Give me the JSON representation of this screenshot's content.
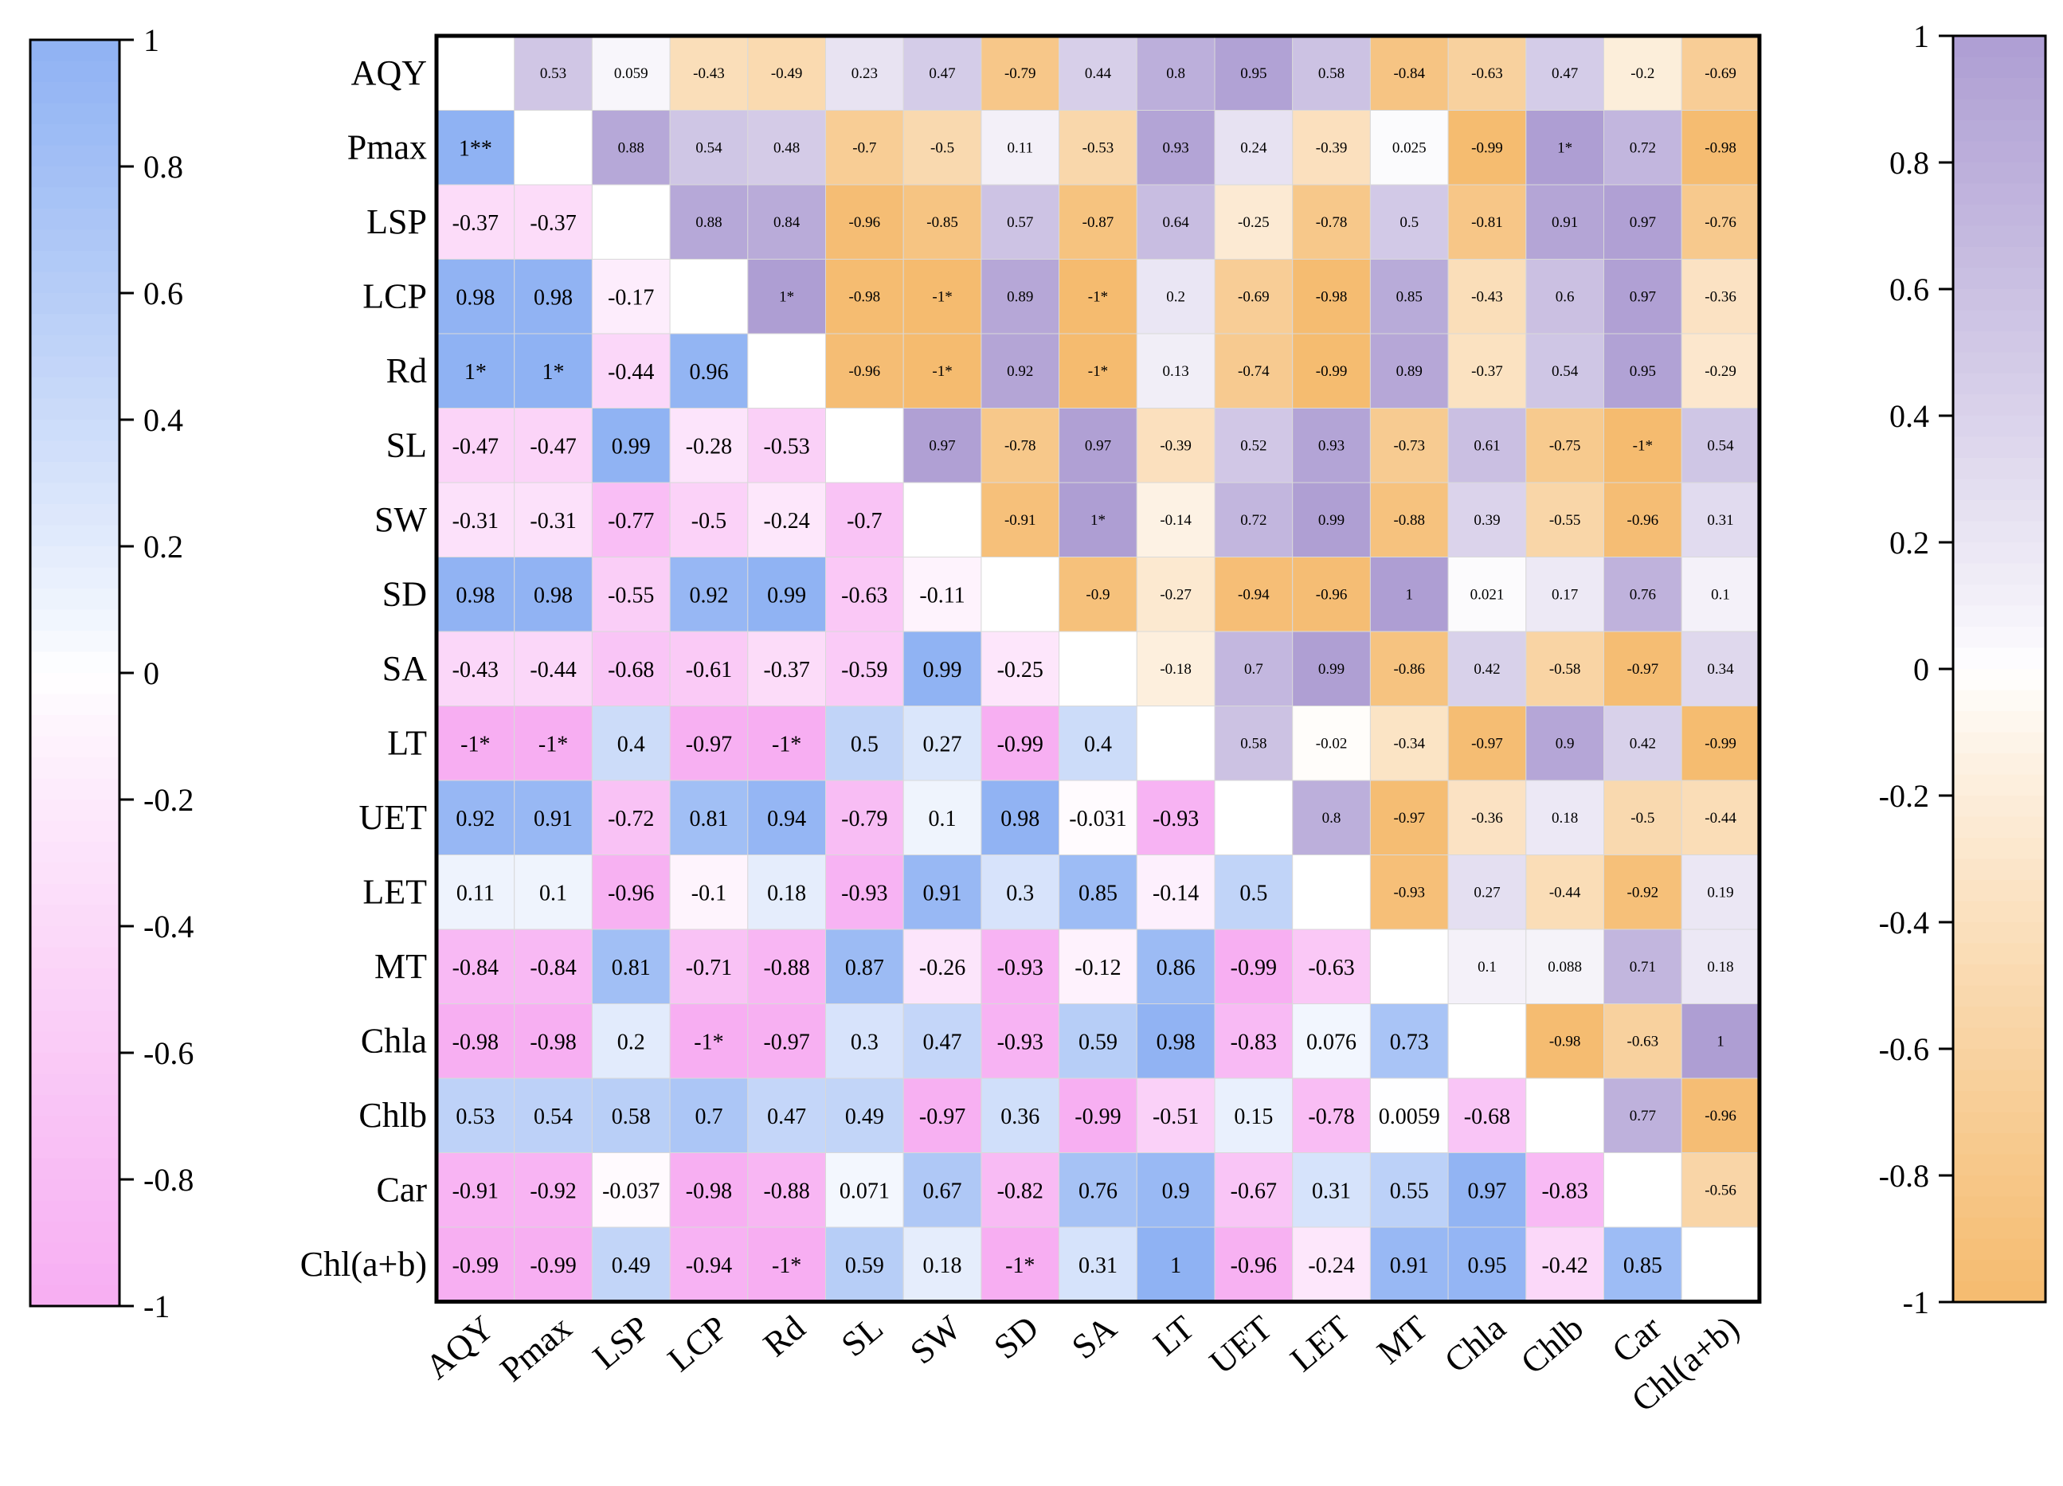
{
  "chart_data": {
    "type": "heatmap",
    "labels": [
      "AQY",
      "Pmax",
      "LSP",
      "LCP",
      "Rd",
      "SL",
      "SW",
      "SD",
      "SA",
      "LT",
      "UET",
      "LET",
      "MT",
      "Chla",
      "Chlb",
      "Car",
      "Chl(a+b)"
    ],
    "matrix": [
      [
        "",
        "0.53",
        "0.059",
        "-0.43",
        "-0.49",
        "0.23",
        "0.47",
        "-0.79",
        "0.44",
        "0.8",
        "0.95",
        "0.58",
        "-0.84",
        "-0.63",
        "0.47",
        "-0.2",
        "-0.69"
      ],
      [
        "1**",
        "",
        "0.88",
        "0.54",
        "0.48",
        "-0.7",
        "-0.5",
        "0.11",
        "-0.53",
        "0.93",
        "0.24",
        "-0.39",
        "0.025",
        "-0.99",
        "1*",
        "0.72",
        "-0.98"
      ],
      [
        "-0.37",
        "-0.37",
        "",
        "0.88",
        "0.84",
        "-0.96",
        "-0.85",
        "0.57",
        "-0.87",
        "0.64",
        "-0.25",
        "-0.78",
        "0.5",
        "-0.81",
        "0.91",
        "0.97",
        "-0.76"
      ],
      [
        "0.98",
        "0.98",
        "-0.17",
        "",
        "1*",
        "-0.98",
        "-1*",
        "0.89",
        "-1*",
        "0.2",
        "-0.69",
        "-0.98",
        "0.85",
        "-0.43",
        "0.6",
        "0.97",
        "-0.36"
      ],
      [
        "1*",
        "1*",
        "-0.44",
        "0.96",
        "",
        "-0.96",
        "-1*",
        "0.92",
        "-1*",
        "0.13",
        "-0.74",
        "-0.99",
        "0.89",
        "-0.37",
        "0.54",
        "0.95",
        "-0.29"
      ],
      [
        "-0.47",
        "-0.47",
        "0.99",
        "-0.28",
        "-0.53",
        "",
        "0.97",
        "-0.78",
        "0.97",
        "-0.39",
        "0.52",
        "0.93",
        "-0.73",
        "0.61",
        "-0.75",
        "-1*",
        "0.54"
      ],
      [
        "-0.31",
        "-0.31",
        "-0.77",
        "-0.5",
        "-0.24",
        "-0.7",
        "",
        "-0.91",
        "1*",
        "-0.14",
        "0.72",
        "0.99",
        "-0.88",
        "0.39",
        "-0.55",
        "-0.96",
        "0.31"
      ],
      [
        "0.98",
        "0.98",
        "-0.55",
        "0.92",
        "0.99",
        "-0.63",
        "-0.11",
        "",
        "-0.9",
        "-0.27",
        "-0.94",
        "-0.96",
        "1",
        "0.021",
        "0.17",
        "0.76",
        "0.1"
      ],
      [
        "-0.43",
        "-0.44",
        "-0.68",
        "-0.61",
        "-0.37",
        "-0.59",
        "0.99",
        "-0.25",
        "",
        "-0.18",
        "0.7",
        "0.99",
        "-0.86",
        "0.42",
        "-0.58",
        "-0.97",
        "0.34"
      ],
      [
        "-1*",
        "-1*",
        "0.4",
        "-0.97",
        "-1*",
        "0.5",
        "0.27",
        "-0.99",
        "0.4",
        "",
        "0.58",
        "-0.02",
        "-0.34",
        "-0.97",
        "0.9",
        "0.42",
        "-0.99"
      ],
      [
        "0.92",
        "0.91",
        "-0.72",
        "0.81",
        "0.94",
        "-0.79",
        "0.1",
        "0.98",
        "-0.031",
        "-0.93",
        "",
        "0.8",
        "-0.97",
        "-0.36",
        "0.18",
        "-0.5",
        "-0.44"
      ],
      [
        "0.11",
        "0.1",
        "-0.96",
        "-0.1",
        "0.18",
        "-0.93",
        "0.91",
        "0.3",
        "0.85",
        "-0.14",
        "0.5",
        "",
        "-0.93",
        "0.27",
        "-0.44",
        "-0.92",
        "0.19"
      ],
      [
        "-0.84",
        "-0.84",
        "0.81",
        "-0.71",
        "-0.88",
        "0.87",
        "-0.26",
        "-0.93",
        "-0.12",
        "0.86",
        "-0.99",
        "-0.63",
        "",
        "0.1",
        "0.088",
        "0.71",
        "0.18"
      ],
      [
        "-0.98",
        "-0.98",
        "0.2",
        "-1*",
        "-0.97",
        "0.3",
        "0.47",
        "-0.93",
        "0.59",
        "0.98",
        "-0.83",
        "0.076",
        "0.73",
        "",
        "-0.98",
        "-0.63",
        "1"
      ],
      [
        "0.53",
        "0.54",
        "0.58",
        "0.7",
        "0.47",
        "0.49",
        "-0.97",
        "0.36",
        "-0.99",
        "-0.51",
        "0.15",
        "-0.78",
        "0.0059",
        "-0.68",
        "",
        "0.77",
        "-0.96"
      ],
      [
        "-0.91",
        "-0.92",
        "-0.037",
        "-0.98",
        "-0.88",
        "0.071",
        "0.67",
        "-0.82",
        "0.76",
        "0.9",
        "-0.67",
        "0.31",
        "0.55",
        "0.97",
        "-0.83",
        "",
        "-0.56"
      ],
      [
        "-0.99",
        "-0.99",
        "0.49",
        "-0.94",
        "-1*",
        "0.59",
        "0.18",
        "-1*",
        "0.31",
        "1",
        "-0.96",
        "-0.24",
        "0.91",
        "0.95",
        "-0.42",
        "0.85",
        ""
      ]
    ],
    "lower_triangle_scale": {
      "range": [
        -1,
        1
      ],
      "ticks": [
        "1",
        "0.8",
        "0.6",
        "0.4",
        "0.2",
        "0",
        "-0.2",
        "-0.4",
        "-0.6",
        "-0.8",
        "-1"
      ],
      "high_color": "#8fb2f3",
      "mid_color": "#ffffff",
      "low_color": "#f7aef2"
    },
    "upper_triangle_scale": {
      "range": [
        -1,
        1
      ],
      "ticks": [
        "1",
        "0.8",
        "0.6",
        "0.4",
        "0.2",
        "0",
        "-0.2",
        "-0.4",
        "-0.6",
        "-0.8",
        "-1"
      ],
      "high_color": "#ae9ed3",
      "mid_color": "#ffffff",
      "low_color": "#f5bb6f"
    }
  }
}
